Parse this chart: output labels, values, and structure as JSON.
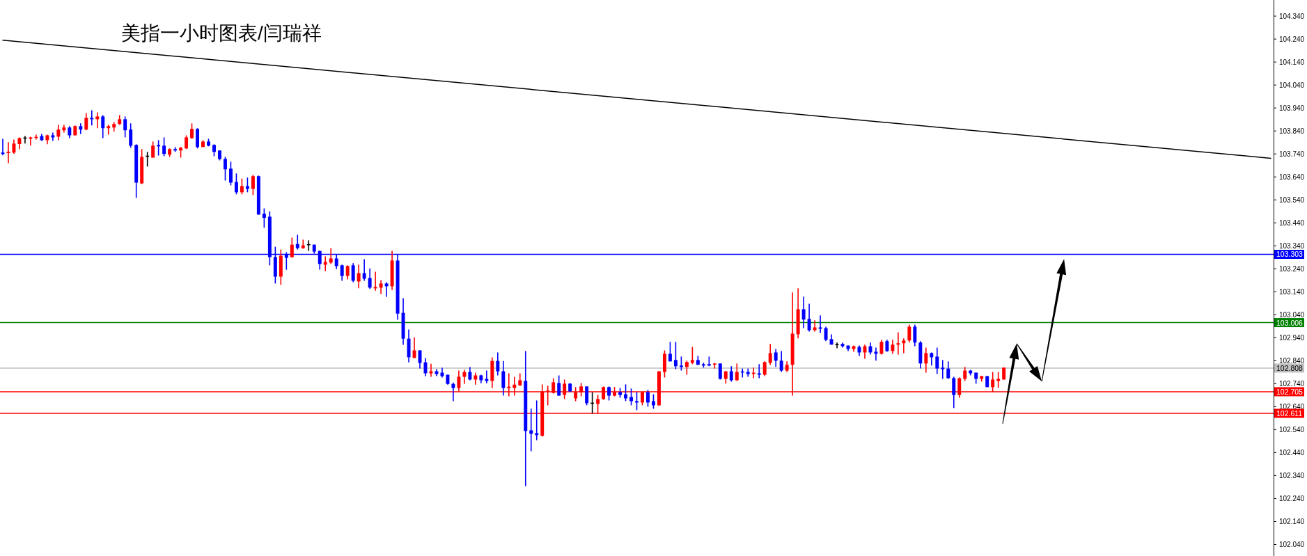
{
  "chart_data": {
    "type": "candlestick",
    "title": "美指一小时图表/闫瑞祥",
    "categories": [
      null,
      null,
      null,
      null,
      null,
      null,
      null,
      null,
      null,
      null,
      null,
      null,
      null,
      null,
      null,
      null,
      null,
      null,
      null,
      null,
      null,
      null,
      null,
      null,
      null,
      null,
      null,
      null,
      null,
      null,
      null,
      null,
      null,
      null,
      null,
      null,
      null,
      null,
      null,
      null,
      null,
      null,
      null,
      null,
      null,
      null,
      null,
      null,
      null,
      null,
      null,
      null,
      null,
      null,
      null,
      null,
      null,
      null,
      null,
      null,
      null,
      null,
      null,
      null,
      null,
      null,
      null,
      null,
      null,
      null,
      null,
      null,
      null,
      null,
      null,
      null,
      null,
      null,
      null,
      null,
      null,
      null,
      null,
      null,
      null,
      null,
      null,
      null,
      null,
      null,
      null,
      null,
      null,
      null,
      null,
      null,
      null,
      null,
      null,
      null,
      null,
      null,
      null,
      null,
      null,
      null,
      null,
      null,
      null,
      null,
      null,
      null,
      null,
      null,
      null,
      null,
      null,
      null,
      null,
      null,
      null,
      null,
      null,
      null,
      null,
      null,
      null,
      null,
      null,
      null,
      null,
      null,
      null,
      null,
      null,
      null,
      null,
      null,
      null,
      null,
      null,
      null,
      null,
      null,
      null,
      null,
      null,
      null,
      null,
      null,
      null,
      null,
      null,
      null,
      null,
      null,
      null,
      null,
      null,
      null,
      null,
      null,
      null,
      null,
      null,
      null,
      null,
      null,
      null,
      null,
      null,
      null,
      null,
      null,
      null,
      null,
      null,
      null,
      null,
      null,
      null,
      null,
      null,
      null,
      null,
      null,
      null,
      null,
      null,
      null,
      null,
      null,
      null,
      null,
      null,
      null,
      null,
      null,
      null,
      null,
      null,
      null,
      null,
      null,
      null,
      null,
      null,
      null,
      null,
      null,
      null,
      null,
      null,
      null,
      null,
      null,
      null,
      null,
      null,
      null,
      null,
      null,
      null,
      null,
      null,
      null,
      null,
      null,
      null
    ],
    "ohlc": [
      [
        103.746,
        103.806,
        103.734,
        103.74
      ],
      [
        103.744,
        103.791,
        103.7,
        103.75
      ],
      [
        103.746,
        103.803,
        103.741,
        103.785
      ],
      [
        103.783,
        103.812,
        103.761,
        103.809
      ],
      [
        103.809,
        103.818,
        103.785,
        103.809
      ],
      [
        103.806,
        103.815,
        103.776,
        103.812
      ],
      [
        103.809,
        103.824,
        103.803,
        103.812
      ],
      [
        103.818,
        103.827,
        103.797,
        103.8
      ],
      [
        103.8,
        103.824,
        103.782,
        103.821
      ],
      [
        103.821,
        103.833,
        103.797,
        103.812
      ],
      [
        103.815,
        103.867,
        103.8,
        103.846
      ],
      [
        103.843,
        103.867,
        103.833,
        103.855
      ],
      [
        103.855,
        103.861,
        103.809,
        103.821
      ],
      [
        103.821,
        103.864,
        103.821,
        103.861
      ],
      [
        103.861,
        103.873,
        103.827,
        103.846
      ],
      [
        103.846,
        103.918,
        103.843,
        103.897
      ],
      [
        103.897,
        103.93,
        103.864,
        103.891
      ],
      [
        103.891,
        103.921,
        103.852,
        103.903
      ],
      [
        103.903,
        103.909,
        103.809,
        103.852
      ],
      [
        103.852,
        103.867,
        103.824,
        103.861
      ],
      [
        103.855,
        103.879,
        103.837,
        103.87
      ],
      [
        103.87,
        103.909,
        103.867,
        103.891
      ],
      [
        103.891,
        103.903,
        103.812,
        103.843
      ],
      [
        103.846,
        103.873,
        103.767,
        103.776
      ],
      [
        103.779,
        103.782,
        103.549,
        103.615
      ],
      [
        103.612,
        103.761,
        103.609,
        103.727
      ],
      [
        103.73,
        103.749,
        103.685,
        103.73
      ],
      [
        103.724,
        103.794,
        103.724,
        103.776
      ],
      [
        103.779,
        103.8,
        103.733,
        103.773
      ],
      [
        103.776,
        103.812,
        103.73,
        103.74
      ],
      [
        103.737,
        103.764,
        103.727,
        103.761
      ],
      [
        103.761,
        103.77,
        103.749,
        103.755
      ],
      [
        103.755,
        103.77,
        103.724,
        103.767
      ],
      [
        103.764,
        103.821,
        103.761,
        103.812
      ],
      [
        103.809,
        103.873,
        103.806,
        103.849
      ],
      [
        103.849,
        103.852,
        103.764,
        103.77
      ],
      [
        103.77,
        103.8,
        103.77,
        103.794
      ],
      [
        103.794,
        103.806,
        103.773,
        103.776
      ],
      [
        103.779,
        103.782,
        103.73,
        103.749
      ],
      [
        103.755,
        103.755,
        103.712,
        103.718
      ],
      [
        103.718,
        103.727,
        103.624,
        103.673
      ],
      [
        103.676,
        103.706,
        103.603,
        103.615
      ],
      [
        103.618,
        103.655,
        103.564,
        103.573
      ],
      [
        103.573,
        103.633,
        103.564,
        103.6
      ],
      [
        103.6,
        103.637,
        103.573,
        103.588
      ],
      [
        103.588,
        103.649,
        103.561,
        103.643
      ],
      [
        103.643,
        103.646,
        103.476,
        103.476
      ],
      [
        103.48,
        103.503,
        103.419,
        103.462
      ],
      [
        103.467,
        103.49,
        103.255,
        103.291
      ],
      [
        103.291,
        103.336,
        103.176,
        103.206
      ],
      [
        103.206,
        103.324,
        103.17,
        103.297
      ],
      [
        103.303,
        103.312,
        103.236,
        103.288
      ],
      [
        103.291,
        103.376,
        103.288,
        103.345
      ],
      [
        103.348,
        103.388,
        103.324,
        103.33
      ],
      [
        103.33,
        103.367,
        103.327,
        103.342
      ],
      [
        103.345,
        103.364,
        103.318,
        103.345
      ],
      [
        103.345,
        103.345,
        103.306,
        103.315
      ],
      [
        103.318,
        103.318,
        103.236,
        103.261
      ],
      [
        103.258,
        103.294,
        103.23,
        103.27
      ],
      [
        103.267,
        103.33,
        103.261,
        103.285
      ],
      [
        103.285,
        103.303,
        103.239,
        103.252
      ],
      [
        103.255,
        103.258,
        103.188,
        103.209
      ],
      [
        103.209,
        103.255,
        103.194,
        103.252
      ],
      [
        103.255,
        103.264,
        103.182,
        103.188
      ],
      [
        103.185,
        103.258,
        103.155,
        103.221
      ],
      [
        103.221,
        103.282,
        103.188,
        103.197
      ],
      [
        103.2,
        103.242,
        103.152,
        103.158
      ],
      [
        103.155,
        103.227,
        103.145,
        103.161
      ],
      [
        103.158,
        103.191,
        103.13,
        103.176
      ],
      [
        103.176,
        103.182,
        103.118,
        103.164
      ],
      [
        103.164,
        103.318,
        103.148,
        103.276
      ],
      [
        103.276,
        103.303,
        103.018,
        103.045
      ],
      [
        103.048,
        103.112,
        102.909,
        102.936
      ],
      [
        102.936,
        102.976,
        102.833,
        102.855
      ],
      [
        102.852,
        102.942,
        102.852,
        102.885
      ],
      [
        102.885,
        102.885,
        102.806,
        102.83
      ],
      [
        102.833,
        102.852,
        102.773,
        102.785
      ],
      [
        102.785,
        102.827,
        102.77,
        102.794
      ],
      [
        102.794,
        102.803,
        102.773,
        102.782
      ],
      [
        102.788,
        102.809,
        102.767,
        102.773
      ],
      [
        102.779,
        102.779,
        102.736,
        102.739
      ],
      [
        102.739,
        102.745,
        102.664,
        102.721
      ],
      [
        102.721,
        102.797,
        102.706,
        102.77
      ],
      [
        102.77,
        102.8,
        102.739,
        102.791
      ],
      [
        102.791,
        102.812,
        102.755,
        102.758
      ],
      [
        102.758,
        102.788,
        102.736,
        102.776
      ],
      [
        102.776,
        102.779,
        102.742,
        102.755
      ],
      [
        102.761,
        102.797,
        102.742,
        102.752
      ],
      [
        102.752,
        102.855,
        102.721,
        102.839
      ],
      [
        102.839,
        102.876,
        102.776,
        102.794
      ],
      [
        102.794,
        102.839,
        102.688,
        102.721
      ],
      [
        102.721,
        102.785,
        102.685,
        102.727
      ],
      [
        102.721,
        102.77,
        102.688,
        102.736
      ],
      [
        102.733,
        102.785,
        102.73,
        102.755
      ],
      [
        102.752,
        102.882,
        102.294,
        102.534
      ],
      [
        102.537,
        102.631,
        102.446,
        102.522
      ],
      [
        102.525,
        102.667,
        102.494,
        102.516
      ],
      [
        102.513,
        102.737,
        102.51,
        102.706
      ],
      [
        102.706,
        102.731,
        102.646,
        102.71
      ],
      [
        102.7,
        102.764,
        102.697,
        102.746
      ],
      [
        102.743,
        102.776,
        102.688,
        102.688
      ],
      [
        102.691,
        102.758,
        102.673,
        102.74
      ],
      [
        102.74,
        102.743,
        102.706,
        102.706
      ],
      [
        102.676,
        102.725,
        102.664,
        102.703
      ],
      [
        102.703,
        102.743,
        102.685,
        102.728
      ],
      [
        102.728,
        102.728,
        102.646,
        102.655
      ],
      [
        102.655,
        102.703,
        102.61,
        102.655
      ],
      [
        102.652,
        102.691,
        102.61,
        102.673
      ],
      [
        102.673,
        102.728,
        102.67,
        102.725
      ],
      [
        102.725,
        102.728,
        102.667,
        102.688
      ],
      [
        102.688,
        102.725,
        102.685,
        102.703
      ],
      [
        102.703,
        102.722,
        102.679,
        102.691
      ],
      [
        102.694,
        102.737,
        102.664,
        102.676
      ],
      [
        102.682,
        102.719,
        102.646,
        102.664
      ],
      [
        102.664,
        102.703,
        102.625,
        102.658
      ],
      [
        102.658,
        102.703,
        102.646,
        102.703
      ],
      [
        102.703,
        102.713,
        102.64,
        102.658
      ],
      [
        102.664,
        102.694,
        102.631,
        102.646
      ],
      [
        102.646,
        102.794,
        102.643,
        102.794
      ],
      [
        102.791,
        102.885,
        102.767,
        102.87
      ],
      [
        102.87,
        102.922,
        102.837,
        102.837
      ],
      [
        102.843,
        102.922,
        102.803,
        102.816
      ],
      [
        102.819,
        102.858,
        102.797,
        102.813
      ],
      [
        102.813,
        102.84,
        102.779,
        102.834
      ],
      [
        102.831,
        102.9,
        102.825,
        102.843
      ],
      [
        102.843,
        102.861,
        102.822,
        102.822
      ],
      [
        102.825,
        102.831,
        102.81,
        102.819
      ],
      [
        102.825,
        102.858,
        102.816,
        102.819
      ],
      [
        102.822,
        102.831,
        102.806,
        102.825
      ],
      [
        102.828,
        102.828,
        102.758,
        102.761
      ],
      [
        102.761,
        102.794,
        102.74,
        102.794
      ],
      [
        102.794,
        102.816,
        102.749,
        102.755
      ],
      [
        102.755,
        102.828,
        102.752,
        102.791
      ],
      [
        102.791,
        102.806,
        102.767,
        102.788
      ],
      [
        102.791,
        102.806,
        102.77,
        102.782
      ],
      [
        102.782,
        102.81,
        102.764,
        102.788
      ],
      [
        102.785,
        102.825,
        102.764,
        102.779
      ],
      [
        102.779,
        102.837,
        102.773,
        102.834
      ],
      [
        102.831,
        102.913,
        102.822,
        102.873
      ],
      [
        102.876,
        102.891,
        102.813,
        102.84
      ],
      [
        102.84,
        102.882,
        102.791,
        102.797
      ],
      [
        102.797,
        102.837,
        102.791,
        102.822
      ],
      [
        102.822,
        103.137,
        102.688,
        102.958
      ],
      [
        102.955,
        103.155,
        102.937,
        103.064
      ],
      [
        103.064,
        103.119,
        102.982,
        103.019
      ],
      [
        103.022,
        103.088,
        102.967,
        102.973
      ],
      [
        102.973,
        103.016,
        102.967,
        102.985
      ],
      [
        102.985,
        103.037,
        102.961,
        102.979
      ],
      [
        102.982,
        102.988,
        102.925,
        102.931
      ],
      [
        102.934,
        102.955,
        102.91,
        102.91
      ],
      [
        102.91,
        102.919,
        102.894,
        102.91
      ],
      [
        102.913,
        102.919,
        102.897,
        102.903
      ],
      [
        102.906,
        102.906,
        102.882,
        102.891
      ],
      [
        102.891,
        102.906,
        102.879,
        102.903
      ],
      [
        102.9,
        102.906,
        102.861,
        102.876
      ],
      [
        102.876,
        102.91,
        102.849,
        102.903
      ],
      [
        102.903,
        102.919,
        102.867,
        102.876
      ],
      [
        102.879,
        102.897,
        102.84,
        102.87
      ],
      [
        102.87,
        102.931,
        102.867,
        102.922
      ],
      [
        102.925,
        102.931,
        102.879,
        102.882
      ],
      [
        102.882,
        102.931,
        102.87,
        102.91
      ],
      [
        102.91,
        102.964,
        102.867,
        102.916
      ],
      [
        102.916,
        102.937,
        102.873,
        102.928
      ],
      [
        102.928,
        102.997,
        102.919,
        102.988
      ],
      [
        102.988,
        102.997,
        102.903,
        102.919
      ],
      [
        102.919,
        102.925,
        102.806,
        102.828
      ],
      [
        102.828,
        102.897,
        102.788,
        102.873
      ],
      [
        102.873,
        102.876,
        102.819,
        102.855
      ],
      [
        102.858,
        102.897,
        102.782,
        102.806
      ],
      [
        102.81,
        102.843,
        102.761,
        102.803
      ],
      [
        102.806,
        102.837,
        102.761,
        102.764
      ],
      [
        102.764,
        102.77,
        102.634,
        102.691
      ],
      [
        102.691,
        102.767,
        102.679,
        102.764
      ],
      [
        102.761,
        102.813,
        102.752,
        102.797
      ],
      [
        102.797,
        102.8,
        102.776,
        102.785
      ],
      [
        102.788,
        102.788,
        102.74,
        102.761
      ],
      [
        102.761,
        102.773,
        102.749,
        102.773
      ],
      [
        102.773,
        102.773,
        102.725,
        102.725
      ],
      [
        102.725,
        102.791,
        102.703,
        102.758
      ],
      [
        102.752,
        102.791,
        102.722,
        102.761
      ],
      [
        102.758,
        102.81,
        102.758,
        102.81
      ],
      null,
      null,
      null,
      null,
      null,
      null,
      null,
      null,
      null,
      null,
      null,
      null,
      null,
      null,
      null,
      null,
      null,
      null,
      null,
      null,
      null,
      null,
      null,
      null,
      null,
      null,
      null,
      null,
      null,
      null,
      null,
      null,
      null,
      null,
      null,
      null,
      null,
      null,
      null,
      null,
      null,
      null,
      null,
      null,
      null,
      null,
      null,
      null
    ],
    "colors": [
      "#0000ff",
      "#ff0000",
      "#ff0000",
      "#ff0000",
      "#000000",
      "#ff0000",
      "#ff0000",
      "#0000ff",
      "#ff0000",
      "#0000ff",
      "#ff0000",
      "#ff0000",
      "#0000ff",
      "#ff0000",
      "#0000ff",
      "#ff0000",
      "#0000ff",
      "#ff0000",
      "#0000ff",
      "#ff0000",
      "#ff0000",
      "#ff0000",
      "#0000ff",
      "#0000ff",
      "#0000ff",
      "#ff0000",
      "#000000",
      "#ff0000",
      "#0000ff",
      "#0000ff",
      "#ff0000",
      "#0000ff",
      "#ff0000",
      "#ff0000",
      "#ff0000",
      "#0000ff",
      "#ff0000",
      "#0000ff",
      "#0000ff",
      "#0000ff",
      "#0000ff",
      "#0000ff",
      "#0000ff",
      "#ff0000",
      "#0000ff",
      "#ff0000",
      "#0000ff",
      "#0000ff",
      "#0000ff",
      "#0000ff",
      "#ff0000",
      "#0000ff",
      "#ff0000",
      "#0000ff",
      "#ff0000",
      "#000000",
      "#0000ff",
      "#0000ff",
      "#ff0000",
      "#ff0000",
      "#0000ff",
      "#0000ff",
      "#ff0000",
      "#0000ff",
      "#ff0000",
      "#0000ff",
      "#0000ff",
      "#ff0000",
      "#ff0000",
      "#0000ff",
      "#ff0000",
      "#0000ff",
      "#0000ff",
      "#0000ff",
      "#ff0000",
      "#0000ff",
      "#0000ff",
      "#ff0000",
      "#0000ff",
      "#0000ff",
      "#0000ff",
      "#0000ff",
      "#ff0000",
      "#ff0000",
      "#0000ff",
      "#ff0000",
      "#0000ff",
      "#0000ff",
      "#ff0000",
      "#0000ff",
      "#0000ff",
      "#ff0000",
      "#ff0000",
      "#ff0000",
      "#0000ff",
      "#0000ff",
      "#0000ff",
      "#ff0000",
      "#ff0000",
      "#ff0000",
      "#0000ff",
      "#ff0000",
      "#0000ff",
      "#ff0000",
      "#ff0000",
      "#0000ff",
      "#000000",
      "#ff0000",
      "#ff0000",
      "#0000ff",
      "#ff0000",
      "#0000ff",
      "#0000ff",
      "#0000ff",
      "#0000ff",
      "#ff0000",
      "#0000ff",
      "#0000ff",
      "#ff0000",
      "#ff0000",
      "#0000ff",
      "#0000ff",
      "#0000ff",
      "#ff0000",
      "#ff0000",
      "#0000ff",
      "#0000ff",
      "#0000ff",
      "#ff0000",
      "#0000ff",
      "#ff0000",
      "#0000ff",
      "#ff0000",
      "#0000ff",
      "#0000ff",
      "#ff0000",
      "#0000ff",
      "#ff0000",
      "#ff0000",
      "#0000ff",
      "#0000ff",
      "#ff0000",
      "#ff0000",
      "#ff0000",
      "#0000ff",
      "#0000ff",
      "#ff0000",
      "#0000ff",
      "#0000ff",
      "#0000ff",
      "#000000",
      "#0000ff",
      "#0000ff",
      "#ff0000",
      "#0000ff",
      "#ff0000",
      "#0000ff",
      "#0000ff",
      "#ff0000",
      "#0000ff",
      "#ff0000",
      "#ff0000",
      "#ff0000",
      "#ff0000",
      "#0000ff",
      "#0000ff",
      "#ff0000",
      "#0000ff",
      "#0000ff",
      "#0000ff",
      "#0000ff",
      "#0000ff",
      "#ff0000",
      "#ff0000",
      "#0000ff",
      "#0000ff",
      "#ff0000",
      "#0000ff",
      "#ff0000",
      "#ff0000",
      "#ff0000",
      null,
      null,
      null,
      null,
      null,
      null,
      null,
      null,
      null,
      null,
      null,
      null,
      null,
      null,
      null,
      null,
      null,
      null,
      null,
      null,
      null,
      null,
      null,
      null,
      null,
      null,
      null,
      null,
      null,
      null,
      null,
      null,
      null,
      null,
      null,
      null,
      null,
      null,
      null,
      null,
      null,
      null,
      null,
      null,
      null,
      null,
      null,
      null
    ],
    "series": [
      {
        "type": "line",
        "color": "#000000",
        "values": [
          104.235,
          null,
          null,
          null,
          null,
          null,
          null,
          null,
          null,
          null,
          null,
          null,
          null,
          null,
          null,
          null,
          null,
          null,
          null,
          null,
          null,
          null,
          null,
          null,
          null,
          null,
          null,
          null,
          null,
          null,
          null,
          null,
          null,
          null,
          null,
          null,
          null,
          null,
          null,
          null,
          null,
          null,
          null,
          null,
          null,
          null,
          null,
          null,
          null,
          null,
          null,
          null,
          null,
          null,
          null,
          null,
          null,
          null,
          null,
          null,
          null,
          null,
          null,
          null,
          null,
          null,
          null,
          null,
          null,
          null,
          null,
          null,
          null,
          null,
          null,
          null,
          null,
          null,
          null,
          null,
          null,
          null,
          null,
          null,
          null,
          null,
          null,
          null,
          null,
          null,
          null,
          null,
          null,
          null,
          null,
          null,
          null,
          null,
          null,
          null,
          null,
          null,
          null,
          null,
          null,
          null,
          null,
          null,
          null,
          null,
          null,
          null,
          null,
          null,
          null,
          null,
          null,
          null,
          null,
          null,
          null,
          null,
          null,
          null,
          null,
          null,
          null,
          null,
          null,
          null,
          null,
          null,
          null,
          null,
          null,
          null,
          null,
          null,
          null,
          null,
          null,
          null,
          null,
          null,
          null,
          null,
          null,
          null,
          null,
          null,
          null,
          null,
          null,
          null,
          null,
          null,
          null,
          null,
          null,
          null,
          null,
          null,
          null,
          null,
          null,
          null,
          null,
          null,
          null,
          null,
          null,
          null,
          null,
          null,
          null,
          null,
          null,
          null,
          null,
          null,
          null,
          null,
          null,
          null,
          null,
          null,
          null,
          null,
          null,
          null,
          null,
          null,
          null,
          null,
          null,
          null,
          null,
          null,
          null,
          null,
          null,
          null,
          null,
          null,
          null,
          null,
          null,
          null,
          null,
          null,
          null,
          null,
          null,
          null,
          null,
          null,
          null,
          null,
          null,
          null,
          null,
          null,
          null,
          null,
          null,
          null,
          null,
          null,
          103.721
        ]
      }
    ],
    "ylim": [
      101.99,
      104.41
    ],
    "yticks": [
      {
        "value": 102.04,
        "label": "102.040"
      },
      {
        "value": 102.14,
        "label": "102.140"
      },
      {
        "value": 102.24,
        "label": "102.240"
      },
      {
        "value": 102.34,
        "label": "102.340"
      },
      {
        "value": 102.44,
        "label": "102.440"
      },
      {
        "value": 102.54,
        "label": "102.540"
      },
      {
        "value": 102.64,
        "label": "102.640"
      },
      {
        "value": 102.74,
        "label": "102.740"
      },
      {
        "value": 102.84,
        "label": "102.840"
      },
      {
        "value": 102.94,
        "label": "102.940"
      },
      {
        "value": 103.04,
        "label": "103.040"
      },
      {
        "value": 103.14,
        "label": "103.140"
      },
      {
        "value": 103.24,
        "label": "103.240"
      },
      {
        "value": 103.34,
        "label": "103.340"
      },
      {
        "value": 103.44,
        "label": "103.440"
      },
      {
        "value": 103.54,
        "label": "103.540"
      },
      {
        "value": 103.64,
        "label": "103.640"
      },
      {
        "value": 103.74,
        "label": "103.740"
      },
      {
        "value": 103.84,
        "label": "103.840"
      },
      {
        "value": 103.94,
        "label": "103.940"
      },
      {
        "value": 104.04,
        "label": "104.040"
      },
      {
        "value": 104.14,
        "label": "104.140"
      },
      {
        "value": 104.24,
        "label": "104.240"
      },
      {
        "value": 104.34,
        "label": "104.340"
      }
    ],
    "ref_lines": [
      {
        "axis": "y",
        "value": 103.303,
        "label": "103.303",
        "color": "#0000ff"
      },
      {
        "axis": "y",
        "value": 103.006,
        "label": "103.006",
        "color": "#008000"
      },
      {
        "axis": "y",
        "value": 102.808,
        "label": "102.808",
        "color": "#c0c0c0"
      },
      {
        "axis": "y",
        "value": 102.705,
        "label": "102.705",
        "color": "#ff0000"
      },
      {
        "axis": "y",
        "value": 102.611,
        "label": "102.611",
        "color": "#ff0000"
      }
    ],
    "tick_labels": "y",
    "grid": false
  }
}
